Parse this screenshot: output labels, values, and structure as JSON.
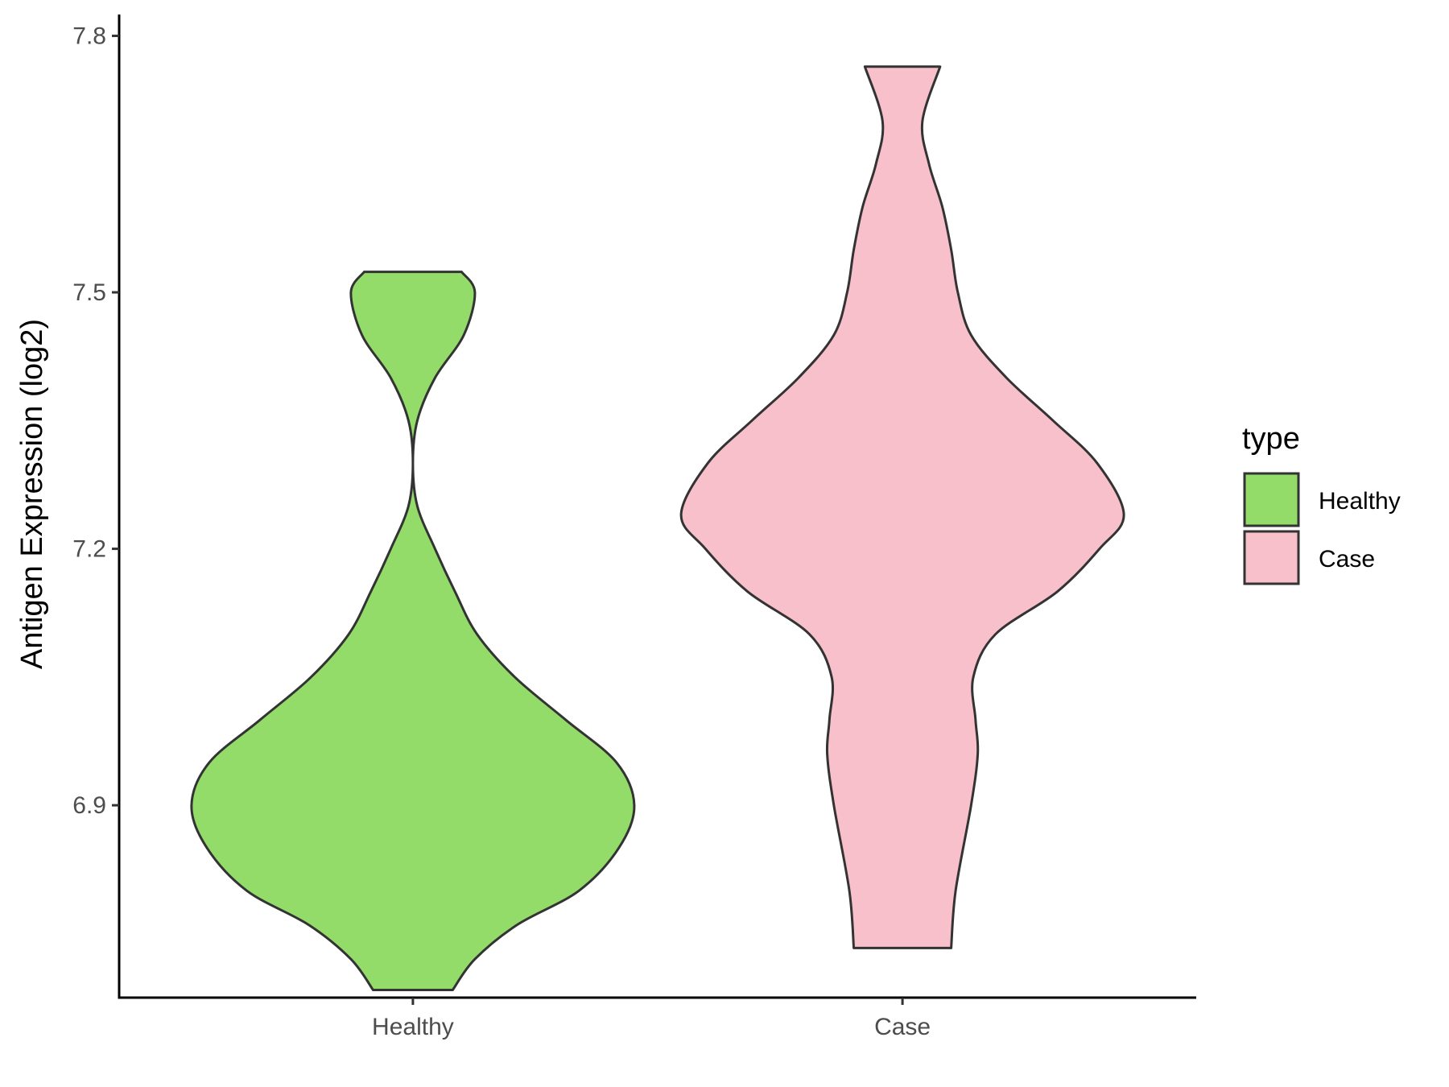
{
  "chart_data": {
    "type": "violin",
    "ylabel": "Antigen Expression (log2)",
    "xlabel": "",
    "categories": [
      "Healthy",
      "Case"
    ],
    "ylim": [
      6.675,
      7.825
    ],
    "yticks": [
      6.9,
      7.2,
      7.5,
      7.8
    ],
    "ytick_labels": [
      "6.9",
      "7.2",
      "7.5",
      "7.8"
    ],
    "grid": false,
    "legend": {
      "title": "type",
      "position": "right",
      "entries": [
        {
          "label": "Healthy",
          "color": "#93dc6a"
        },
        {
          "label": "Case",
          "color": "#f7c0cb"
        }
      ]
    },
    "series": [
      {
        "category": "Healthy",
        "color": "#93dc6a",
        "min": 6.684,
        "max": 7.524,
        "density_profile": [
          [
            6.684,
            0.18
          ],
          [
            6.72,
            0.28
          ],
          [
            6.76,
            0.47
          ],
          [
            6.8,
            0.75
          ],
          [
            6.85,
            0.93
          ],
          [
            6.9,
            1.0
          ],
          [
            6.95,
            0.92
          ],
          [
            7.0,
            0.69
          ],
          [
            7.05,
            0.46
          ],
          [
            7.1,
            0.29
          ],
          [
            7.15,
            0.19
          ],
          [
            7.2,
            0.1
          ],
          [
            7.25,
            0.02
          ],
          [
            7.3,
            0.0
          ],
          [
            7.35,
            0.02
          ],
          [
            7.4,
            0.1
          ],
          [
            7.45,
            0.23
          ],
          [
            7.5,
            0.28
          ],
          [
            7.524,
            0.22
          ]
        ]
      },
      {
        "category": "Case",
        "color": "#f7c0cb",
        "min": 6.733,
        "max": 7.764,
        "density_profile": [
          [
            6.733,
            0.22
          ],
          [
            6.8,
            0.24
          ],
          [
            6.9,
            0.31
          ],
          [
            6.96,
            0.34
          ],
          [
            7.0,
            0.33
          ],
          [
            7.05,
            0.32
          ],
          [
            7.1,
            0.42
          ],
          [
            7.15,
            0.7
          ],
          [
            7.2,
            0.89
          ],
          [
            7.24,
            1.0
          ],
          [
            7.3,
            0.88
          ],
          [
            7.35,
            0.68
          ],
          [
            7.4,
            0.47
          ],
          [
            7.45,
            0.31
          ],
          [
            7.5,
            0.25
          ],
          [
            7.55,
            0.22
          ],
          [
            7.6,
            0.18
          ],
          [
            7.65,
            0.12
          ],
          [
            7.7,
            0.09
          ],
          [
            7.764,
            0.17
          ]
        ]
      }
    ]
  }
}
